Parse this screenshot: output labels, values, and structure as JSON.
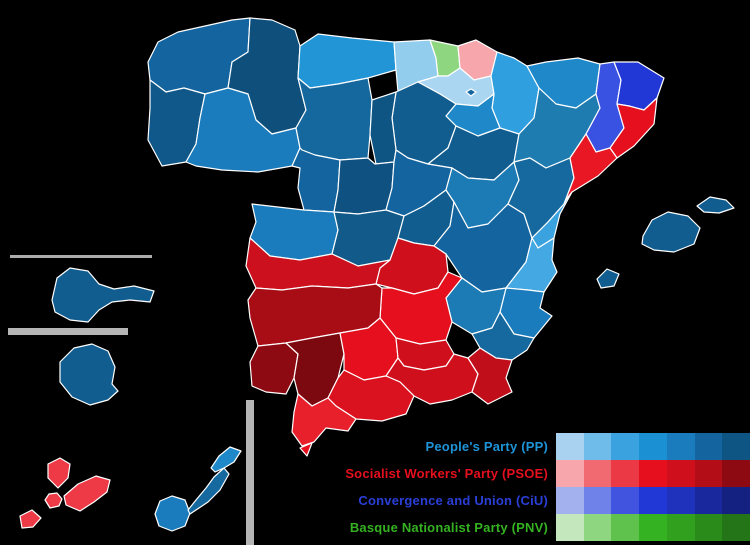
{
  "legend": {
    "parties": [
      {
        "id": "pp",
        "label": "People's Party (PP)",
        "text_color": "#1e94d8",
        "swatches": [
          "#a9d2f0",
          "#6fbbe9",
          "#3ba2e0",
          "#1b90d2",
          "#1a7cbc",
          "#14659f",
          "#0f5584"
        ]
      },
      {
        "id": "psoe",
        "label": "Socialist Workers' Party (PSOE)",
        "text_color": "#e60f1d",
        "swatches": [
          "#f7a6ab",
          "#f16a72",
          "#ec3946",
          "#e60f1d",
          "#d00f1d",
          "#b30d18",
          "#8e0a12"
        ]
      },
      {
        "id": "ciu",
        "label": "Convergence and Union (CiU)",
        "text_color": "#2a3fd8",
        "swatches": [
          "#a3b2ef",
          "#6e82e9",
          "#4054e0",
          "#2138d6",
          "#1e32bb",
          "#19299d",
          "#142180"
        ]
      },
      {
        "id": "pnv",
        "label": "Basque Nationalist Party (PNV)",
        "text_color": "#35b221",
        "swatches": [
          "#c5e7bd",
          "#8fd680",
          "#5fc24c",
          "#35b221",
          "#30a01e",
          "#2a8b1a",
          "#237517"
        ]
      }
    ]
  },
  "map": {
    "background": "#000000",
    "province_border_color": "#ffffff",
    "divider_color": "#b5b5b5",
    "regions": [
      {
        "id": "a_coruna",
        "party": "pp",
        "color": "#14659f"
      },
      {
        "id": "lugo",
        "party": "pp",
        "color": "#0e4f7c"
      },
      {
        "id": "pontevedra",
        "party": "pp",
        "color": "#11588a"
      },
      {
        "id": "ourense",
        "party": "pp",
        "color": "#1a7cbc"
      },
      {
        "id": "asturias",
        "party": "pp",
        "color": "#2295d6"
      },
      {
        "id": "leon",
        "party": "pp",
        "color": "#15689e"
      },
      {
        "id": "cantabria",
        "party": "pp",
        "color": "#93cdee"
      },
      {
        "id": "vizcaya",
        "party": "pnv",
        "color": "#8fd680"
      },
      {
        "id": "gipuzkoa",
        "party": "psoe",
        "color": "#f7a6ab"
      },
      {
        "id": "alava",
        "party": "pp",
        "color": "#abd6f2"
      },
      {
        "id": "trevino",
        "party": "pp",
        "color": "#14659f"
      },
      {
        "id": "navarra",
        "party": "pp",
        "color": "#2f9fe0"
      },
      {
        "id": "la_rioja",
        "party": "pp",
        "color": "#1e88c8"
      },
      {
        "id": "burgos",
        "party": "pp",
        "color": "#125d8f"
      },
      {
        "id": "palencia",
        "party": "pp",
        "color": "#0f5584"
      },
      {
        "id": "zamora",
        "party": "pp",
        "color": "#14659f"
      },
      {
        "id": "valladolid",
        "party": "pp",
        "color": "#0f5180"
      },
      {
        "id": "soria",
        "party": "pp",
        "color": "#125d8f"
      },
      {
        "id": "segovia",
        "party": "pp",
        "color": "#14659f"
      },
      {
        "id": "salamanca",
        "party": "pp",
        "color": "#1a7cbc"
      },
      {
        "id": "avila",
        "party": "pp",
        "color": "#115a89"
      },
      {
        "id": "madrid",
        "party": "pp",
        "color": "#125d8f"
      },
      {
        "id": "guadalajara",
        "party": "pp",
        "color": "#1c7ab4"
      },
      {
        "id": "cuenca",
        "party": "pp",
        "color": "#14659f"
      },
      {
        "id": "huesca",
        "party": "pp",
        "color": "#1e88c8"
      },
      {
        "id": "zaragoza",
        "party": "pp",
        "color": "#1f7cb0"
      },
      {
        "id": "teruel",
        "party": "pp",
        "color": "#16699f"
      },
      {
        "id": "lleida",
        "party": "ciu",
        "color": "#3a52e2"
      },
      {
        "id": "girona",
        "party": "ciu",
        "color": "#2138d6"
      },
      {
        "id": "barcelona",
        "party": "psoe",
        "color": "#e60f1d"
      },
      {
        "id": "tarragona",
        "party": "psoe",
        "color": "#e81723"
      },
      {
        "id": "castellon",
        "party": "pp",
        "color": "#3ba2e0"
      },
      {
        "id": "valencia",
        "party": "pp",
        "color": "#44a8e2"
      },
      {
        "id": "alicante",
        "party": "pp",
        "color": "#1a7cbc"
      },
      {
        "id": "albacete",
        "party": "pp",
        "color": "#1c7ab4"
      },
      {
        "id": "murcia",
        "party": "pp",
        "color": "#16699f"
      },
      {
        "id": "toledo",
        "party": "psoe",
        "color": "#d00f1d"
      },
      {
        "id": "ciudad_real",
        "party": "psoe",
        "color": "#e60f1d"
      },
      {
        "id": "caceres",
        "party": "psoe",
        "color": "#cc101e"
      },
      {
        "id": "badajoz",
        "party": "psoe",
        "color": "#a80d16"
      },
      {
        "id": "huelva",
        "party": "psoe",
        "color": "#8e0a12"
      },
      {
        "id": "sevilla",
        "party": "psoe",
        "color": "#7c0910"
      },
      {
        "id": "cordoba",
        "party": "psoe",
        "color": "#e60f1d"
      },
      {
        "id": "jaen",
        "party": "psoe",
        "color": "#d00f1d"
      },
      {
        "id": "granada",
        "party": "psoe",
        "color": "#d00f1d"
      },
      {
        "id": "almeria",
        "party": "psoe",
        "color": "#c00e1a"
      },
      {
        "id": "malaga",
        "party": "psoe",
        "color": "#da1220"
      },
      {
        "id": "cadiz",
        "party": "psoe",
        "color": "#e8202c"
      },
      {
        "id": "mallorca",
        "party": "pp",
        "color": "#125d8f"
      },
      {
        "id": "menorca",
        "party": "pp",
        "color": "#125d8f"
      },
      {
        "id": "ibiza",
        "party": "pp",
        "color": "#125d8f"
      },
      {
        "id": "la_palma",
        "party": "psoe",
        "color": "#ee3a46"
      },
      {
        "id": "el_hierro",
        "party": "psoe",
        "color": "#ee3a46"
      },
      {
        "id": "la_gomera",
        "party": "psoe",
        "color": "#ee3a46"
      },
      {
        "id": "tenerife",
        "party": "psoe",
        "color": "#ee3a46"
      },
      {
        "id": "gran_canaria",
        "party": "pp",
        "color": "#1a7cbc"
      },
      {
        "id": "fuerteventura",
        "party": "pp",
        "color": "#16699f"
      },
      {
        "id": "lanzarote",
        "party": "pp",
        "color": "#1e88c8"
      },
      {
        "id": "inset_island_north",
        "party": "pp",
        "color": "#125d8f"
      },
      {
        "id": "inset_island_south",
        "party": "pp",
        "color": "#125d8f"
      },
      {
        "id": "ceuta",
        "party": "psoe",
        "color": "#e60f1d"
      }
    ]
  }
}
